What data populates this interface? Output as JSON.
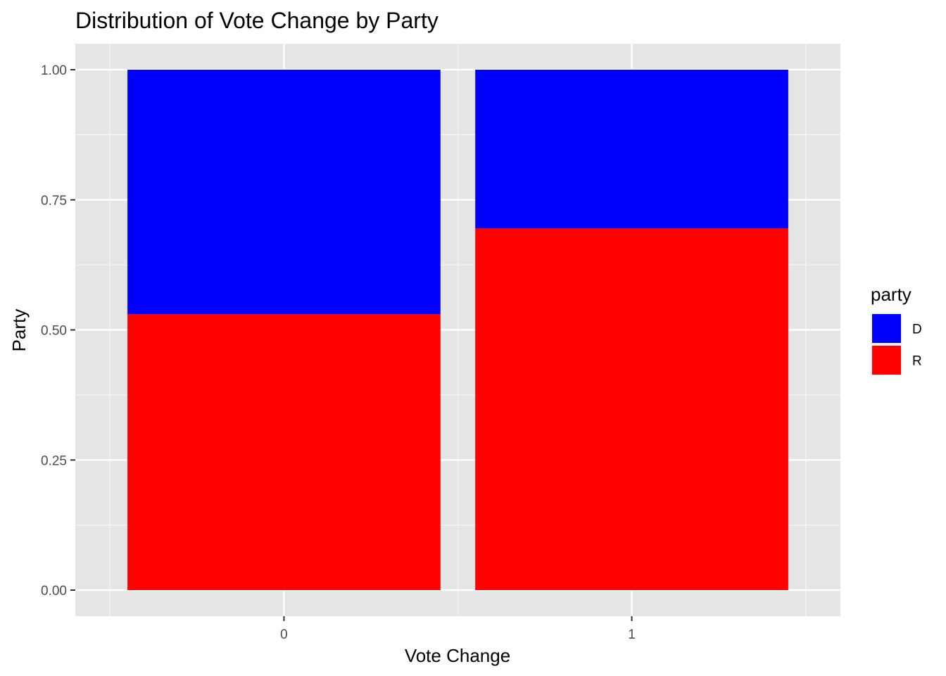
{
  "chart_data": {
    "type": "bar",
    "stacked": "fill",
    "title": "Distribution of Vote Change by Party",
    "xlabel": "Vote Change",
    "ylabel": "Party",
    "categories": [
      "0",
      "1"
    ],
    "ylim": [
      0,
      1
    ],
    "yticks": [
      "0.00",
      "0.25",
      "0.50",
      "0.75",
      "1.00"
    ],
    "grid": true,
    "legend": {
      "title": "party",
      "placement": "right"
    },
    "series": [
      {
        "name": "R",
        "color": "#ff0000",
        "values": [
          0.53,
          0.695
        ]
      },
      {
        "name": "D",
        "color": "#0000ff",
        "values": [
          0.47,
          0.305
        ]
      }
    ],
    "legend_order": [
      "D",
      "R"
    ]
  }
}
